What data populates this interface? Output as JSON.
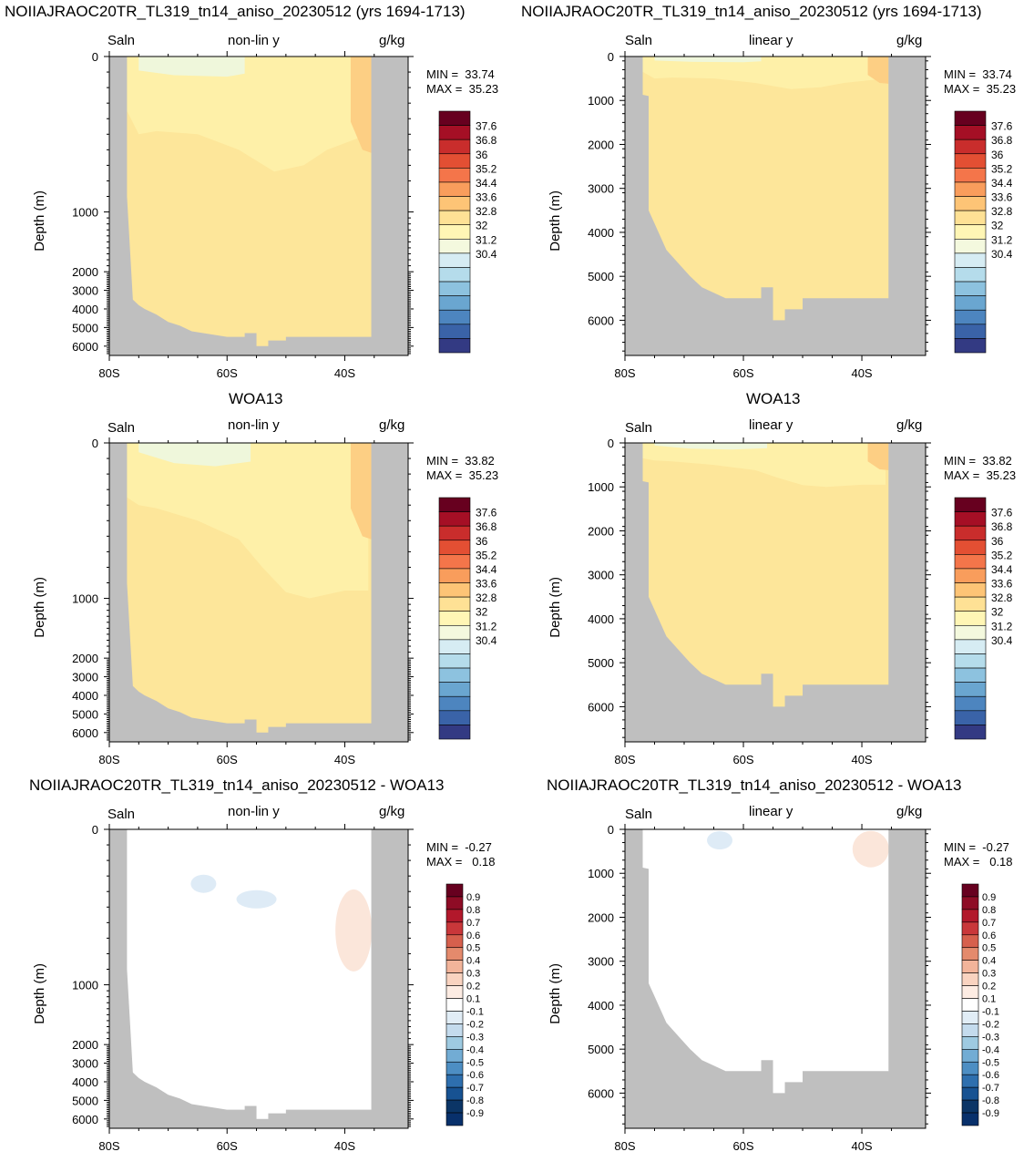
{
  "titles": {
    "left_top": "NOIIAJRAOC20TR_TL319_tn14_aniso_20230512 (yrs 1694-1713)",
    "right_top": "NOIIAJRAOC20TR_TL319_tn14_aniso_20230512 (yrs 1694-1713)",
    "left_mid": "WOA13",
    "right_mid": "WOA13",
    "left_bot": "NOIIAJRAOC20TR_TL319_tn14_aniso_20230512 - WOA13",
    "right_bot": "NOIIAJRAOC20TR_TL319_tn14_aniso_20230512 - WOA13"
  },
  "panel_labels": {
    "left": "Saln",
    "units": "g/kg",
    "nonlin": "non-lin y",
    "linear": "linear y"
  },
  "axis": {
    "ylabel": "Depth (m)",
    "xticks": [
      "80S",
      "60S",
      "40S"
    ]
  },
  "yticks_nonlin": [
    "0",
    "1000",
    "2000",
    "3000",
    "4000",
    "5000",
    "6000"
  ],
  "yticks_linear": [
    "0",
    "1000",
    "2000",
    "3000",
    "4000",
    "5000",
    "6000"
  ],
  "stats": {
    "model": {
      "min": "MIN =  33.74",
      "max": "MAX =  35.23"
    },
    "obs": {
      "min": "MIN =  33.82",
      "max": "MAX =  35.23"
    },
    "diff": {
      "min": "MIN =  -0.27",
      "max": "MAX =   0.18"
    }
  },
  "colorbar_saln": {
    "labels": [
      "37.6",
      "36.8",
      "36",
      "35.2",
      "34.4",
      "33.6",
      "32.8",
      "32",
      "31.2",
      "30.4"
    ],
    "colors": [
      "#67001f",
      "#a50f25",
      "#c92d2c",
      "#e34f33",
      "#f4754a",
      "#f99d5c",
      "#fdc476",
      "#fee195",
      "#fff6b5",
      "#f4f9de",
      "#d6ecf3",
      "#b5dceb",
      "#8dc2df",
      "#6aa6d0",
      "#4d85bf",
      "#3a63a8",
      "#333a83"
    ]
  },
  "colorbar_diff": {
    "labels": [
      "0.9",
      "0.8",
      "0.7",
      "0.6",
      "0.5",
      "0.4",
      "0.3",
      "0.2",
      "0.1",
      "-0.1",
      "-0.2",
      "-0.3",
      "-0.4",
      "-0.5",
      "-0.6",
      "-0.7",
      "-0.8",
      "-0.9"
    ],
    "colors": [
      "#67001f",
      "#8e0c25",
      "#b2182b",
      "#c9373a",
      "#d6604d",
      "#e48a6c",
      "#f2b49a",
      "#f9d3c0",
      "#fdece3",
      "#ffffff",
      "#e1edf6",
      "#c4dbed",
      "#9ecae1",
      "#72acd4",
      "#4d8ec3",
      "#2e6fae",
      "#175292",
      "#0b3566",
      "#08306b"
    ]
  },
  "chart_data": [
    {
      "type": "heatmap",
      "title": "NOIIAJRAOC20TR_TL319_tn14_aniso_20230512 (yrs 1694-1713)",
      "variable": "Saln",
      "units": "g/kg",
      "y_axis": "non-lin y",
      "ylabel": "Depth (m)",
      "xlim": [
        "80S",
        "30S"
      ],
      "ylim": [
        0,
        6500
      ],
      "min": 33.74,
      "max": 35.23
    },
    {
      "type": "heatmap",
      "title": "NOIIAJRAOC20TR_TL319_tn14_aniso_20230512 (yrs 1694-1713)",
      "variable": "Saln",
      "units": "g/kg",
      "y_axis": "linear y",
      "ylabel": "Depth (m)",
      "xlim": [
        "80S",
        "30S"
      ],
      "ylim": [
        0,
        6800
      ],
      "min": 33.74,
      "max": 35.23
    },
    {
      "type": "heatmap",
      "title": "WOA13",
      "variable": "Saln",
      "units": "g/kg",
      "y_axis": "non-lin y",
      "ylabel": "Depth (m)",
      "xlim": [
        "80S",
        "30S"
      ],
      "ylim": [
        0,
        6500
      ],
      "min": 33.82,
      "max": 35.23
    },
    {
      "type": "heatmap",
      "title": "WOA13",
      "variable": "Saln",
      "units": "g/kg",
      "y_axis": "linear y",
      "ylabel": "Depth (m)",
      "xlim": [
        "80S",
        "30S"
      ],
      "ylim": [
        0,
        6800
      ],
      "min": 33.82,
      "max": 35.23
    },
    {
      "type": "heatmap",
      "title": "NOIIAJRAOC20TR_TL319_tn14_aniso_20230512 - WOA13",
      "variable": "Saln",
      "units": "g/kg",
      "y_axis": "non-lin y",
      "ylabel": "Depth (m)",
      "xlim": [
        "80S",
        "30S"
      ],
      "ylim": [
        0,
        6500
      ],
      "min": -0.27,
      "max": 0.18
    },
    {
      "type": "heatmap",
      "title": "NOIIAJRAOC20TR_TL319_tn14_aniso_20230512 - WOA13",
      "variable": "Saln",
      "units": "g/kg",
      "y_axis": "linear y",
      "ylabel": "Depth (m)",
      "xlim": [
        "80S",
        "30S"
      ],
      "ylim": [
        0,
        6800
      ],
      "min": -0.27,
      "max": 0.18
    }
  ]
}
